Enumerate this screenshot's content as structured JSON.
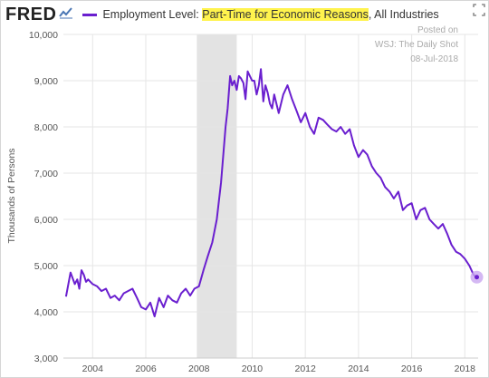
{
  "header": {
    "logo": "FRED",
    "title_prefix": "Employment Level: ",
    "title_highlight": "Part-Time for Economic Reasons",
    "title_suffix": ", All Industries",
    "expand_icon": "expand-arrows-icon",
    "logo_icon": "chart-line-icon"
  },
  "annotation": {
    "line1": "Posted on",
    "line2": "WSJ: The Daily Shot",
    "line3": "08-Jul-2018"
  },
  "colors": {
    "series": "#6a1fcf",
    "recession": "#e3e3e3",
    "grid": "#e6e6e6",
    "highlight": "#fff34d",
    "last_point": "#c9a6f0"
  },
  "chart_data": {
    "type": "line",
    "title": "Employment Level: Part-Time for Economic Reasons, All Industries",
    "ylabel": "Thousands of Persons",
    "xlabel": "",
    "xlim": [
      2002.9,
      2018.5
    ],
    "ylim": [
      3000,
      10000
    ],
    "yticks": [
      3000,
      4000,
      5000,
      6000,
      7000,
      8000,
      9000,
      10000
    ],
    "ytick_labels": [
      "3,000",
      "4,000",
      "5,000",
      "6,000",
      "7,000",
      "8,000",
      "9,000",
      "10,000"
    ],
    "xticks": [
      2004,
      2006,
      2008,
      2010,
      2012,
      2014,
      2016,
      2018
    ],
    "xtick_labels": [
      "2004",
      "2006",
      "2008",
      "2010",
      "2012",
      "2014",
      "2016",
      "2018"
    ],
    "grid": true,
    "recessions": [
      [
        2007.92,
        2009.42
      ]
    ],
    "series": [
      {
        "x": [
          2003.0,
          2003.17,
          2003.33,
          2003.42,
          2003.5,
          2003.58,
          2003.67,
          2003.75,
          2003.83,
          2004.0,
          2004.17,
          2004.33,
          2004.5,
          2004.67,
          2004.83,
          2005.0,
          2005.17,
          2005.33,
          2005.5,
          2005.67,
          2005.83,
          2006.0,
          2006.17,
          2006.33,
          2006.5,
          2006.67,
          2006.83,
          2007.0,
          2007.17,
          2007.33,
          2007.5,
          2007.67,
          2007.83,
          2008.0,
          2008.17,
          2008.33,
          2008.5,
          2008.67,
          2008.83,
          2009.0,
          2009.08,
          2009.17,
          2009.25,
          2009.33,
          2009.42,
          2009.5,
          2009.58,
          2009.67,
          2009.75,
          2009.83,
          2010.0,
          2010.08,
          2010.17,
          2010.25,
          2010.33,
          2010.42,
          2010.5,
          2010.58,
          2010.67,
          2010.75,
          2010.83,
          2011.0,
          2011.17,
          2011.33,
          2011.5,
          2011.67,
          2011.83,
          2012.0,
          2012.17,
          2012.33,
          2012.5,
          2012.67,
          2012.83,
          2013.0,
          2013.17,
          2013.33,
          2013.5,
          2013.67,
          2013.83,
          2014.0,
          2014.17,
          2014.33,
          2014.5,
          2014.67,
          2014.83,
          2015.0,
          2015.17,
          2015.33,
          2015.5,
          2015.67,
          2015.83,
          2016.0,
          2016.17,
          2016.33,
          2016.5,
          2016.67,
          2016.83,
          2017.0,
          2017.17,
          2017.33,
          2017.5,
          2017.67,
          2017.83,
          2018.0,
          2018.17,
          2018.33,
          2018.45
        ],
        "values": [
          4330,
          4850,
          4600,
          4700,
          4500,
          4900,
          4800,
          4650,
          4700,
          4600,
          4550,
          4450,
          4500,
          4300,
          4350,
          4250,
          4400,
          4450,
          4500,
          4300,
          4100,
          4050,
          4200,
          3900,
          4300,
          4100,
          4350,
          4250,
          4200,
          4400,
          4500,
          4350,
          4500,
          4550,
          4900,
          5200,
          5500,
          6000,
          6800,
          8000,
          8400,
          9100,
          8900,
          9000,
          8800,
          9100,
          9050,
          8950,
          8600,
          9200,
          9000,
          9000,
          8700,
          8900,
          9250,
          8550,
          8900,
          8750,
          8500,
          8400,
          8700,
          8300,
          8700,
          8900,
          8600,
          8350,
          8100,
          8300,
          8000,
          7850,
          8200,
          8150,
          8050,
          7950,
          7900,
          8000,
          7850,
          7950,
          7600,
          7350,
          7500,
          7400,
          7150,
          7000,
          6900,
          6700,
          6600,
          6450,
          6600,
          6200,
          6300,
          6350,
          6000,
          6200,
          6250,
          6000,
          5900,
          5800,
          5900,
          5700,
          5450,
          5300,
          5250,
          5150,
          5000,
          4800,
          4750
        ]
      }
    ]
  }
}
